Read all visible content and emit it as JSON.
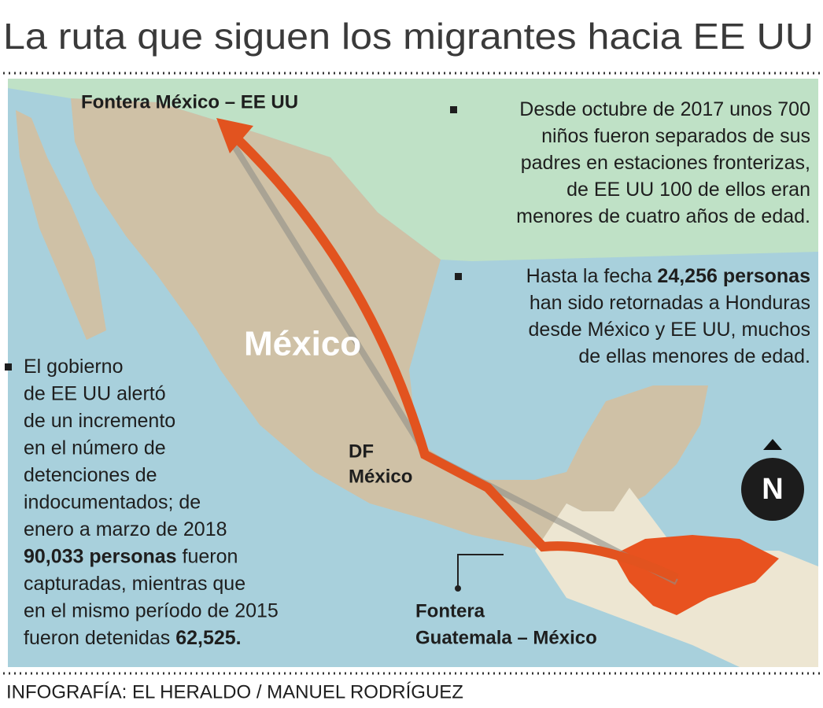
{
  "title": "La ruta que siguen los migrantes hacia EE UU",
  "map_labels": {
    "border_us": "Fontera México – EE UU",
    "country": "México",
    "capital": [
      "DF",
      "México"
    ],
    "border_gt": [
      "Fontera",
      "Guatemala – México"
    ],
    "compass": "N"
  },
  "notes": [
    {
      "lines": [
        [
          {
            "text": "Desde octubre de 2017 unos 700"
          }
        ],
        [
          {
            "text": "niños fueron separados de sus"
          }
        ],
        [
          {
            "text": "padres en estaciones fronterizas,"
          }
        ],
        [
          {
            "text": "de EE UU 100 de ellos eran"
          }
        ],
        [
          {
            "text": "menores de cuatro años de edad."
          }
        ]
      ]
    },
    {
      "lines": [
        [
          {
            "text": "Hasta la fecha "
          },
          {
            "text": "24,256 personas",
            "bold": true
          }
        ],
        [
          {
            "text": "han sido retornadas a Honduras"
          }
        ],
        [
          {
            "text": "desde México y EE UU, muchos"
          }
        ],
        [
          {
            "text": "de ellas menores de edad."
          }
        ]
      ]
    },
    {
      "lines": [
        [
          {
            "text": "El gobierno"
          }
        ],
        [
          {
            "text": "de EE UU alertó"
          }
        ],
        [
          {
            "text": "de un incremento"
          }
        ],
        [
          {
            "text": "en el número de"
          }
        ],
        [
          {
            "text": "detenciones de"
          }
        ],
        [
          {
            "text": "indocumentados; de"
          }
        ],
        [
          {
            "text": "enero a marzo de 2018"
          }
        ],
        [
          {
            "text": "90,033 personas",
            "bold": true
          },
          {
            "text": " fueron"
          }
        ],
        [
          {
            "text": "capturadas, mientras que"
          }
        ],
        [
          {
            "text": "en el mismo período de 2015"
          }
        ],
        [
          {
            "text": "fueron detenidas "
          },
          {
            "text": "62,525.",
            "bold": true
          }
        ]
      ]
    }
  ],
  "credit": "INFOGRAFÍA: EL HERALDO / MANUEL RODRÍGUEZ"
}
